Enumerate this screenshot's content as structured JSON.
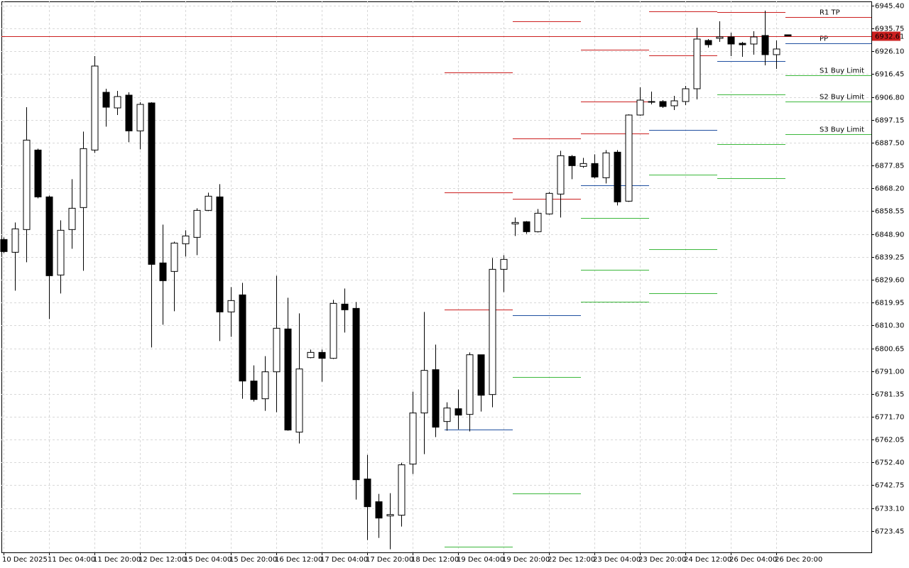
{
  "chart_data": {
    "type": "candlestick",
    "categories": [
      "10 Dec 2025",
      null,
      null,
      null,
      "11 Dec 04:00",
      null,
      null,
      null,
      "11 Dec 20:00",
      null,
      null,
      null,
      "12 Dec 12:00",
      null,
      null,
      null,
      "15 Dec 04:00",
      null,
      null,
      null,
      "15 Dec 20:00",
      null,
      null,
      null,
      "16 Dec 12:00",
      null,
      null,
      null,
      "17 Dec 04:00",
      null,
      null,
      null,
      "17 Dec 20:00",
      null,
      null,
      null,
      "18 Dec 12:00",
      null,
      null,
      null,
      "19 Dec 04:00",
      null,
      null,
      null,
      "19 Dec 20:00",
      null,
      null,
      null,
      "22 Dec 12:00",
      null,
      null,
      null,
      "23 Dec 04:00",
      null,
      null,
      null,
      "23 Dec 20:00",
      null,
      null,
      null,
      "24 Dec 12:00",
      null,
      null,
      null,
      "26 Dec 04:00",
      null,
      null,
      null,
      "26 Dec 20:00",
      null
    ],
    "open": [
      6846.6,
      6841.2,
      6850.8,
      6884.4,
      6864.6,
      6831.6,
      6850.8,
      6860.1,
      6884.4,
      6908.8,
      6902.2,
      6907.6,
      6892.5,
      6904.3,
      6836.7,
      6833.1,
      6844.8,
      6847.5,
      6858.9,
      6864.6,
      6816.0,
      6823.2,
      6786.8,
      6779.3,
      6790.7,
      6808.8,
      6765.2,
      6796.7,
      6798.9,
      6796.4,
      6819.3,
      6817.5,
      6745.4,
      6735.8,
      6729.8,
      6730.1,
      6751.7,
      6773.3,
      6791.6,
      6769.7,
      6775.1,
      6772.7,
      6797.9,
      6781.1,
      6834.0,
      6853.2,
      6854.1,
      6849.9,
      6857.4,
      6865.8,
      6881.7,
      6877.5,
      6878.7,
      6872.7,
      6883.5,
      6862.8,
      6899.2,
      6904.6,
      6904.9,
      6903.1,
      6904.9,
      6910.3,
      6930.7,
      6931.6,
      6932.2,
      6929.5,
      6929.2,
      6932.8,
      6924.7,
      6933.1
    ],
    "high": [
      6847.5,
      6853.8,
      6902.5,
      6885.0,
      6865.2,
      6854.7,
      6872.1,
      6892.2,
      6924.1,
      6910.3,
      6909.4,
      6908.8,
      6904.6,
      6904.6,
      6852.9,
      6845.7,
      6850.5,
      6859.8,
      6866.4,
      6870.0,
      6826.5,
      6828.3,
      6793.4,
      6797.3,
      6831.3,
      6822.0,
      6815.4,
      6800.1,
      6800.1,
      6821.1,
      6825.9,
      6820.2,
      6755.6,
      6739.1,
      6739.4,
      6752.3,
      6782.3,
      6816.0,
      6802.2,
      6777.8,
      6783.2,
      6798.9,
      6797.9,
      6838.8,
      6840.0,
      6855.9,
      6854.4,
      6859.5,
      6866.7,
      6884.1,
      6882.3,
      6881.1,
      6882.6,
      6884.4,
      6884.4,
      6899.5,
      6910.9,
      6909.1,
      6905.5,
      6907.3,
      6911.5,
      6936.1,
      6931.3,
      6938.8,
      6934.0,
      6930.1,
      6934.6,
      6943.3,
      6930.7,
      6933.1
    ],
    "low": [
      6840.9,
      6825.0,
      6837.0,
      6864.0,
      6813.0,
      6823.8,
      6842.7,
      6833.4,
      6883.2,
      6894.3,
      6899.2,
      6887.7,
      6884.7,
      6801.0,
      6810.6,
      6816.3,
      6839.4,
      6840.0,
      6858.6,
      6803.7,
      6805.5,
      6779.3,
      6778.1,
      6774.2,
      6773.6,
      6765.8,
      6760.4,
      6796.4,
      6786.5,
      6796.1,
      6807.3,
      6736.7,
      6719.6,
      6720.5,
      6715.7,
      6725.3,
      6747.5,
      6755.9,
      6763.1,
      6765.8,
      6766.4,
      6765.5,
      6773.9,
      6775.7,
      6824.4,
      6848.1,
      6849.0,
      6849.6,
      6857.1,
      6855.9,
      6872.1,
      6876.9,
      6872.4,
      6870.3,
      6861.0,
      6862.5,
      6898.9,
      6903.7,
      6902.2,
      6901.3,
      6903.4,
      6905.8,
      6927.7,
      6930.1,
      6924.1,
      6923.8,
      6924.7,
      6920.2,
      6918.7,
      6932.5
    ],
    "close": [
      6841.5,
      6851.1,
      6888.6,
      6864.6,
      6831.3,
      6850.5,
      6859.8,
      6885.0,
      6919.9,
      6902.5,
      6907.0,
      6892.5,
      6903.7,
      6836.1,
      6829.2,
      6845.1,
      6848.1,
      6858.9,
      6864.9,
      6816.0,
      6820.8,
      6786.8,
      6779.0,
      6790.7,
      6809.1,
      6766.1,
      6791.9,
      6798.9,
      6796.4,
      6819.6,
      6816.9,
      6745.1,
      6733.7,
      6728.9,
      6730.4,
      6751.4,
      6773.3,
      6791.3,
      6767.3,
      6775.4,
      6772.4,
      6797.9,
      6780.8,
      6834.0,
      6838.2,
      6853.8,
      6849.9,
      6857.7,
      6866.1,
      6882.0,
      6877.8,
      6878.7,
      6873.0,
      6883.2,
      6862.5,
      6899.2,
      6905.5,
      6904.9,
      6902.8,
      6905.2,
      6910.3,
      6931.3,
      6928.9,
      6932.2,
      6929.2,
      6928.9,
      6932.2,
      6924.7,
      6927.1,
      6932.61
    ],
    "up_color": "#ffffff",
    "down_color": "#000000",
    "wick_color": "#000000",
    "last_price": 6932.61,
    "last_price_color": "#cc1f1f",
    "ylim": [
      6714.4,
      6947.2
    ],
    "yticks": [
      {
        "value": 6945.4,
        "label": "6945.40"
      },
      6935.75,
      {
        "value": 6926.1,
        "label": "6926.10"
      },
      6916.45,
      {
        "value": 6906.8,
        "label": "6906.80"
      },
      6897.15,
      {
        "value": 6887.5,
        "label": "6887.50"
      },
      6877.85,
      {
        "value": 6868.2,
        "label": "6868.20"
      },
      6858.55,
      {
        "value": 6848.9,
        "label": "6848.90"
      },
      6839.25,
      {
        "value": 6829.6,
        "label": "6829.60"
      },
      6819.95,
      {
        "value": 6810.3,
        "label": "6810.30"
      },
      6800.65,
      {
        "value": 6791.0,
        "label": "6791.00"
      },
      6781.35,
      {
        "value": 6771.7,
        "label": "6771.70"
      },
      6762.05,
      {
        "value": 6752.4,
        "label": "6752.40"
      },
      6742.75,
      {
        "value": 6733.1,
        "label": "6733.10"
      },
      6723.45
    ],
    "grid": true,
    "pivots": [
      {
        "from": 39,
        "to": 45,
        "levels": [
          {
            "value": 6917.17,
            "color": "#cc1f1f"
          },
          {
            "value": 6866.41,
            "color": "#cc1f1f"
          },
          {
            "value": 6816.85,
            "color": "#cc1f1f"
          },
          {
            "value": 6766.4,
            "color": "#1f4fa0"
          },
          {
            "value": 6716.84,
            "color": "#3cb83c"
          }
        ]
      },
      {
        "from": 45,
        "to": 51,
        "levels": [
          {
            "value": 6938.79,
            "color": "#cc1f1f"
          },
          {
            "value": 6889.24,
            "color": "#cc1f1f"
          },
          {
            "value": 6863.71,
            "color": "#cc1f1f"
          },
          {
            "value": 6814.45,
            "color": "#1f4fa0"
          },
          {
            "value": 6788.62,
            "color": "#3cb83c"
          },
          {
            "value": 6739.37,
            "color": "#3cb83c"
          }
        ]
      },
      {
        "from": 51,
        "to": 57,
        "levels": [
          {
            "value": 6926.78,
            "color": "#cc1f1f"
          },
          {
            "value": 6904.85,
            "color": "#cc1f1f"
          },
          {
            "value": 6891.34,
            "color": "#cc1f1f"
          },
          {
            "value": 6869.41,
            "color": "#1f4fa0"
          },
          {
            "value": 6855.6,
            "color": "#3cb83c"
          },
          {
            "value": 6833.67,
            "color": "#3cb83c"
          },
          {
            "value": 6820.16,
            "color": "#3cb83c"
          }
        ]
      },
      {
        "from": 57,
        "to": 63,
        "levels": [
          {
            "value": 6943.0,
            "color": "#cc1f1f"
          },
          {
            "value": 6924.38,
            "color": "#cc1f1f"
          },
          {
            "value": 6892.84,
            "color": "#1f4fa0"
          },
          {
            "value": 6873.92,
            "color": "#3cb83c"
          },
          {
            "value": 6842.38,
            "color": "#3cb83c"
          },
          {
            "value": 6823.76,
            "color": "#3cb83c"
          }
        ]
      },
      {
        "from": 63,
        "to": 69,
        "levels": [
          {
            "value": 6942.7,
            "color": "#cc1f1f"
          },
          {
            "value": 6921.97,
            "color": "#1f4fa0"
          },
          {
            "value": 6907.86,
            "color": "#3cb83c"
          },
          {
            "value": 6886.83,
            "color": "#3cb83c"
          },
          {
            "value": 6872.42,
            "color": "#3cb83c"
          }
        ]
      },
      {
        "from": 69,
        "to": 77,
        "levels": [
          {
            "value": 6940.59,
            "color": "#cc1f1f",
            "label": "R1 TP"
          },
          {
            "value": 6929.48,
            "color": "#1f4fa0",
            "label": "PP"
          },
          {
            "value": 6915.97,
            "color": "#3cb83c",
            "label": "S1 Buy Limit"
          },
          {
            "value": 6904.85,
            "color": "#3cb83c",
            "label": "S2 Buy Limit"
          },
          {
            "value": 6891.04,
            "color": "#3cb83c",
            "label": "S3 Buy Limit"
          }
        ]
      }
    ]
  }
}
